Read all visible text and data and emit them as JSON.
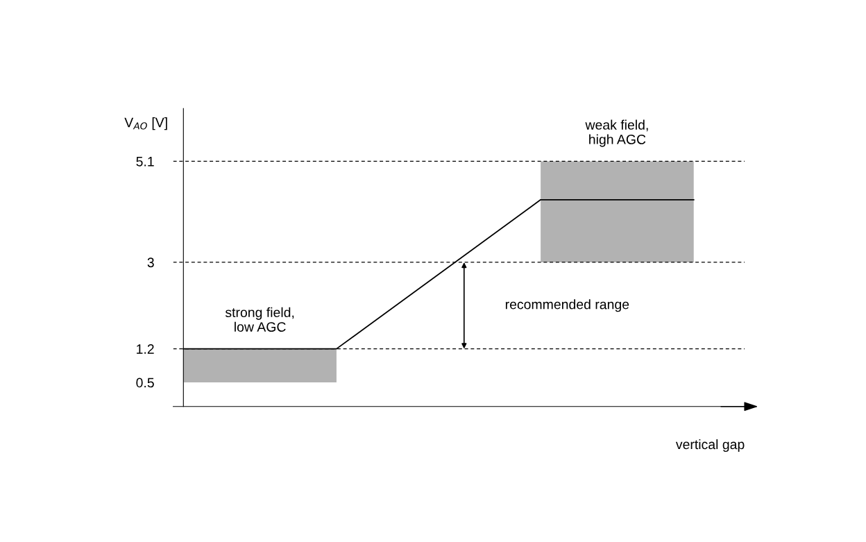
{
  "chart_data": {
    "type": "line",
    "xlabel": "vertical gap",
    "ylabel": "V$_{AO}$ [V]",
    "categories": [
      null,
      null,
      null,
      null,
      null,
      null,
      null,
      null,
      null,
      null,
      null
    ],
    "series": [
      {
        "color": "#000000",
        "values": [
          1.2,
          1.2,
          1.2,
          1.2,
          null,
          null,
          null,
          4.3,
          4.3,
          4.3,
          4.3
        ],
        "lower": [
          0.5,
          0.5,
          0.5,
          0.5,
          null,
          null,
          null,
          3,
          3,
          3,
          3
        ],
        "upper": [
          1.2,
          1.2,
          1.2,
          1.2,
          null,
          null,
          null,
          5.1,
          5.1,
          5.1,
          5.1
        ]
      }
    ],
    "ylim": [
      0,
      6.2
    ],
    "yticks": [
      0.5,
      1.2,
      3,
      5.1
    ],
    "ref_lines": [
      {
        "axis": "y",
        "value": 5.1,
        "color": "#000000",
        "line_style": "dashed"
      },
      {
        "axis": "y",
        "value": 3,
        "color": "#000000",
        "line_style": "dashed"
      },
      {
        "axis": "y",
        "value": 1.2,
        "color": "#000000",
        "line_style": "dashed"
      }
    ],
    "annotations": [
      "strong field,\nlow AGC",
      "weak field,\nhigh AGC",
      "recommended range"
    ],
    "grid": false,
    "legend": false,
    "marker": "none",
    "line_style": "solid"
  }
}
